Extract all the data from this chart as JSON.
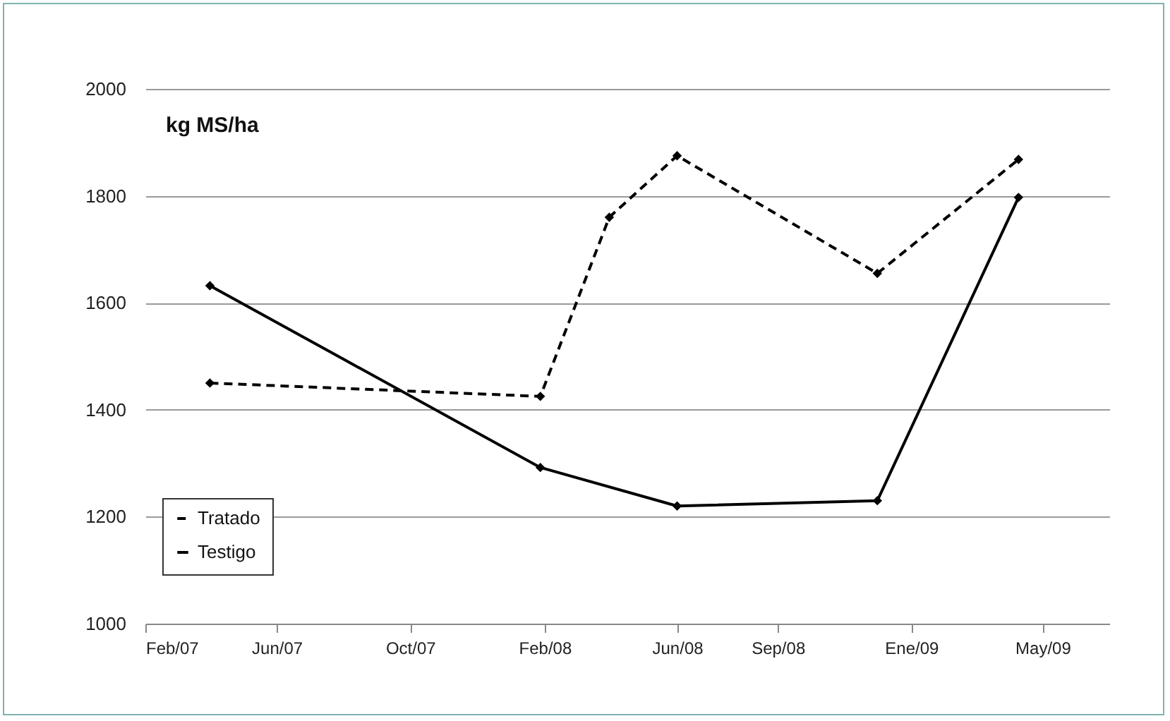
{
  "chart_data": {
    "type": "line",
    "ylabel": "kg MS/ha",
    "x": [
      "2007-04-01",
      "2008-01-28",
      "2008-03-31",
      "2008-06-01",
      "2008-12-01",
      "2009-04-09"
    ],
    "series": [
      {
        "name": "Tratado",
        "color": "#000000",
        "line_style": "dashed",
        "values": [
          1450,
          1425,
          1760,
          1875,
          1655,
          1868
        ]
      },
      {
        "name": "Testigo",
        "color": "#000000",
        "line_style": "solid",
        "x": [
          "2007-04-01",
          "2008-01-28",
          "2008-06-01",
          "2008-12-01",
          "2009-04-09"
        ],
        "values": [
          1632,
          1292,
          1220,
          1230,
          1797
        ]
      }
    ],
    "xlim": [
      "2007-02-01",
      "2009-07-01"
    ],
    "xticks": [
      {
        "value": "2007-02-01",
        "label": "Feb/07"
      },
      {
        "value": "2007-06-01",
        "label": "Jun/07"
      },
      {
        "value": "2007-10-01",
        "label": "Oct/07"
      },
      {
        "value": "2008-02-01",
        "label": "Feb/08"
      },
      {
        "value": "2008-06-01",
        "label": "Jun/08"
      },
      {
        "value": "2008-09-01",
        "label": "Sep/08"
      },
      {
        "value": "2009-01-01",
        "label": "Ene/09"
      },
      {
        "value": "2009-05-01",
        "label": "May/09"
      }
    ],
    "ylim": [
      1000,
      2000
    ],
    "yticks": [
      1000,
      1200,
      1400,
      1600,
      1800,
      2000
    ],
    "grid": "y",
    "legend": "bottom left",
    "marker": "diamond"
  }
}
